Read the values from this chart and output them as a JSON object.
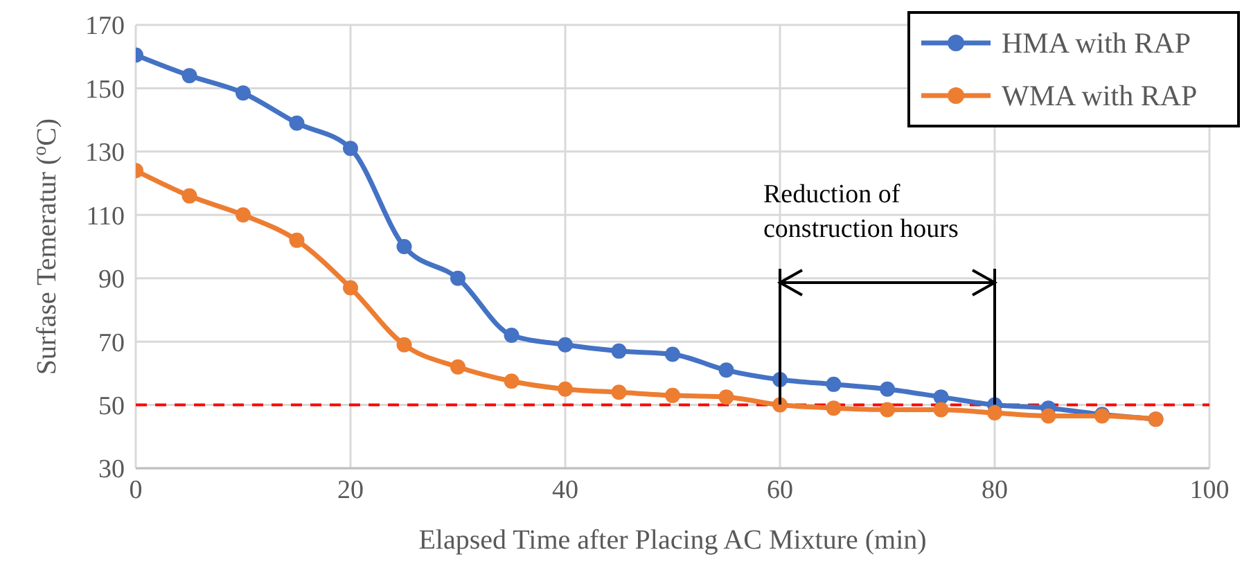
{
  "chart_data": {
    "type": "line",
    "xlabel": "Elapsed Time after Placing AC Mixture (min)",
    "ylabel": "Surfase Temeratur ($^{o}$C)",
    "x": [
      0,
      5,
      10,
      15,
      20,
      25,
      30,
      35,
      40,
      45,
      50,
      55,
      60,
      65,
      70,
      75,
      80,
      85,
      90,
      95
    ],
    "series": [
      {
        "name": "HMA with RAP",
        "color": "#4472c4",
        "values": [
          160.5,
          154,
          148.5,
          139,
          131,
          100,
          90,
          72,
          69,
          67,
          66,
          61,
          58,
          56.5,
          55,
          52.5,
          50,
          49,
          47,
          45.5
        ]
      },
      {
        "name": "WMA with RAP",
        "color": "#ed7d31",
        "values": [
          124,
          116,
          110,
          102,
          87,
          69,
          62,
          57.5,
          55,
          54,
          53,
          52.5,
          50,
          49,
          48.5,
          48.5,
          47.5,
          46.5,
          46.5,
          45.5
        ]
      }
    ],
    "xlim": [
      0,
      100
    ],
    "xticks": [
      0,
      20,
      40,
      60,
      80,
      100
    ],
    "ylim": [
      30,
      170
    ],
    "yticks": [
      30,
      50,
      70,
      90,
      110,
      130,
      150,
      170
    ],
    "ref_lines": [
      {
        "axis": "y",
        "value": 50,
        "color": "#ff0000",
        "line_style": "dashed"
      }
    ],
    "annotations": [
      {
        "text": "Reduction of construction hours",
        "x": 60,
        "y": 50
      }
    ],
    "grid": true,
    "legend": "top right",
    "marker": "circle",
    "line_style": "solid"
  }
}
